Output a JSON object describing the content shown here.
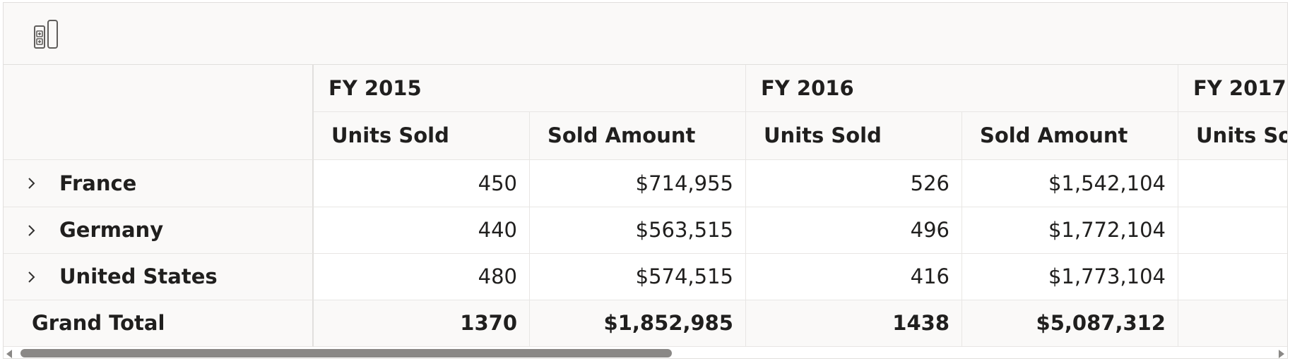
{
  "toolbar": {
    "icon": "field-list-toggle-icon"
  },
  "columns": {
    "years": [
      "FY 2015",
      "FY 2016",
      "FY 2017"
    ],
    "measures": [
      "Units Sold",
      "Sold Amount",
      "Units Sold",
      "Sold Amount",
      "Units Sold"
    ]
  },
  "rows": [
    {
      "label": "France",
      "values": [
        "450",
        "$714,955",
        "526",
        "$1,542,104",
        ""
      ]
    },
    {
      "label": "Germany",
      "values": [
        "440",
        "$563,515",
        "496",
        "$1,772,104",
        ""
      ]
    },
    {
      "label": "United States",
      "values": [
        "480",
        "$574,515",
        "416",
        "$1,773,104",
        ""
      ]
    }
  ],
  "grand_total": {
    "label": "Grand Total",
    "values": [
      "1370",
      "$1,852,985",
      "1438",
      "$5,087,312",
      ""
    ]
  },
  "colors": {
    "header_bg": "#faf9f8",
    "border": "#e1dfdd",
    "text": "#201f1e",
    "scrollbar": "#8a8886"
  }
}
